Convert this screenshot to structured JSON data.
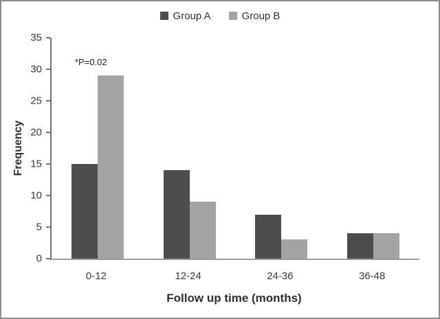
{
  "chart_data": {
    "type": "bar",
    "title": "",
    "categories": [
      "0-12",
      "12-24",
      "24-36",
      "36-48"
    ],
    "series": [
      {
        "name": "Group A",
        "color": "#4d4d4d",
        "values": [
          15,
          14,
          7,
          4
        ]
      },
      {
        "name": "Group B",
        "color": "#a3a3a3",
        "values": [
          29,
          9,
          3,
          4
        ]
      }
    ],
    "xlabel": "Follow up time (months)",
    "ylabel": "Frequency",
    "ylim": [
      0,
      35
    ],
    "yticks": [
      0,
      5,
      10,
      15,
      20,
      25,
      30,
      35
    ],
    "grid": false,
    "legend_position": "top",
    "annotations": [
      {
        "text": "*P=0.02",
        "target_category": "0-12"
      }
    ]
  }
}
